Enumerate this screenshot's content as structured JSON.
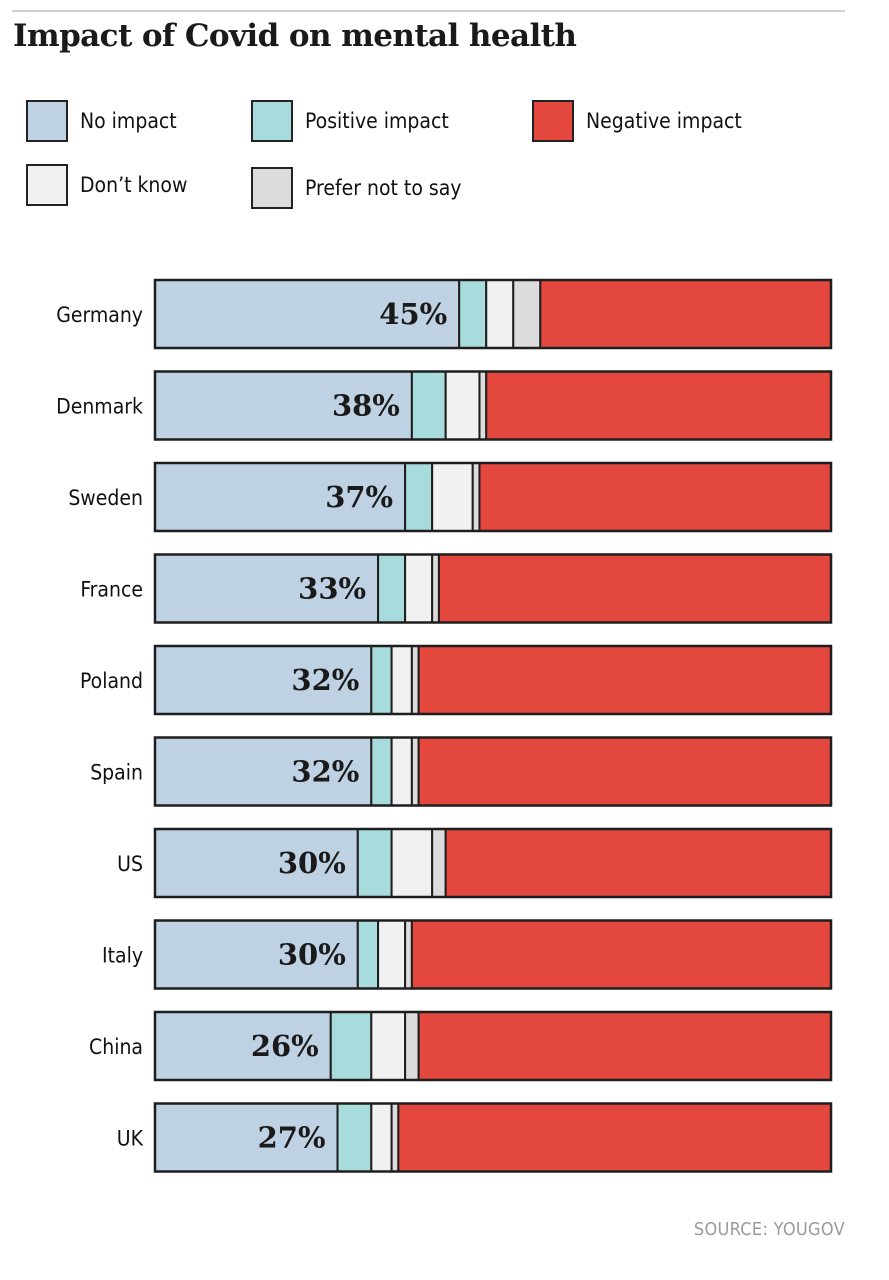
{
  "header": {
    "title": "Impact of Covid on mental health"
  },
  "legend": [
    {
      "label": "No impact",
      "color": "#bfd2e3"
    },
    {
      "label": "Positive impact",
      "color": "#a8dcdc"
    },
    {
      "label": "Negative impact",
      "color": "#e4473d"
    },
    {
      "label": "Don’t know",
      "color": "#f1f1f1"
    },
    {
      "label": "Prefer not to say",
      "color": "#dcdcdc"
    }
  ],
  "chart_data": {
    "type": "bar",
    "orientation": "horizontal",
    "stacked": "100%",
    "categories": [
      "Germany",
      "Denmark",
      "Sweden",
      "France",
      "Poland",
      "Spain",
      "US",
      "Italy",
      "China",
      "UK"
    ],
    "series": [
      {
        "name": "No impact",
        "color": "#bfd2e3",
        "values": [
          45,
          38,
          37,
          33,
          32,
          32,
          30,
          30,
          26,
          27
        ]
      },
      {
        "name": "Positive impact",
        "color": "#a8dcdc",
        "values": [
          4,
          5,
          4,
          4,
          3,
          3,
          5,
          3,
          6,
          5
        ]
      },
      {
        "name": "Don’t know",
        "color": "#f1f1f1",
        "values": [
          4,
          5,
          6,
          4,
          3,
          3,
          6,
          4,
          5,
          3
        ]
      },
      {
        "name": "Prefer not to say",
        "color": "#dcdcdc",
        "values": [
          4,
          1,
          1,
          1,
          1,
          1,
          2,
          1,
          2,
          1
        ]
      },
      {
        "name": "Negative impact",
        "color": "#e4473d",
        "values": [
          43,
          51,
          52,
          58,
          61,
          61,
          57,
          62,
          61,
          64
        ]
      }
    ],
    "data_labels": [
      "45%",
      "38%",
      "37%",
      "33%",
      "32%",
      "32%",
      "30%",
      "30%",
      "26%",
      "27%"
    ],
    "xlim": [
      0,
      100
    ],
    "grid": false,
    "legend_position": "top"
  },
  "footer": {
    "source": "SOURCE: YOUGOV"
  }
}
